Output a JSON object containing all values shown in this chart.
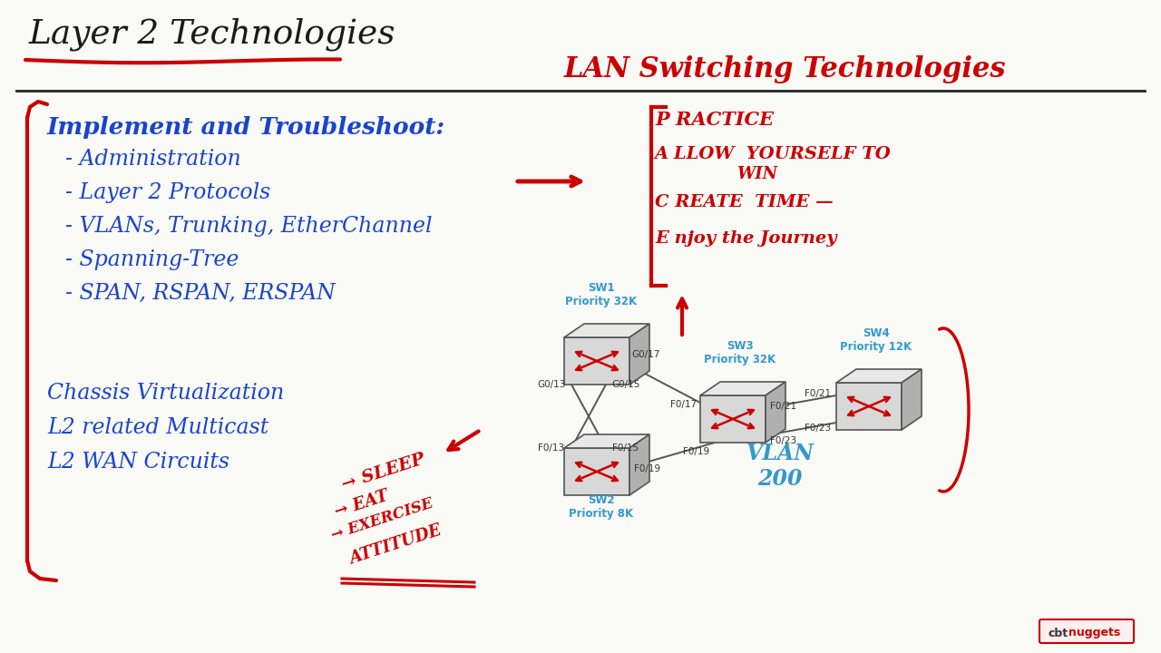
{
  "bg_color": "#f9f9f6",
  "title": "Layer 2 Technologies",
  "title_color": "#1a1a1a",
  "title_underline_color": "#cc0000",
  "subtitle": "LAN Switching Technologies",
  "subtitle_color": "#cc0000",
  "section_header": "Implement and Troubleshoot:",
  "section_header_color": "#1a44cc",
  "bullet_items": [
    "- Administration",
    "- Layer 2 Protocols",
    "- VLANs, Trunking, EtherChannel",
    "- Spanning-Tree",
    "- SPAN, RSPAN, ERSPAN"
  ],
  "bullet_color": "#1a44cc",
  "extra_items": [
    "Chassis Virtualization",
    "L2 related Multicast",
    "L2 WAN Circuits"
  ],
  "extra_color": "#1a44cc",
  "pace_color": "#cc0000",
  "sleep_color": "#cc0000",
  "divider_color": "#222222",
  "bracket_color": "#cc0000",
  "switch_face_color": "#d8d8d8",
  "switch_top_color": "#e8e8e8",
  "switch_right_color": "#b0b0b0",
  "switch_edge_color": "#555555",
  "switch_arrow_color": "#cc0000",
  "port_label_color": "#333333",
  "sw_label_color": "#3399cc",
  "vlan_color": "#3399cc",
  "line_color": "#555555"
}
